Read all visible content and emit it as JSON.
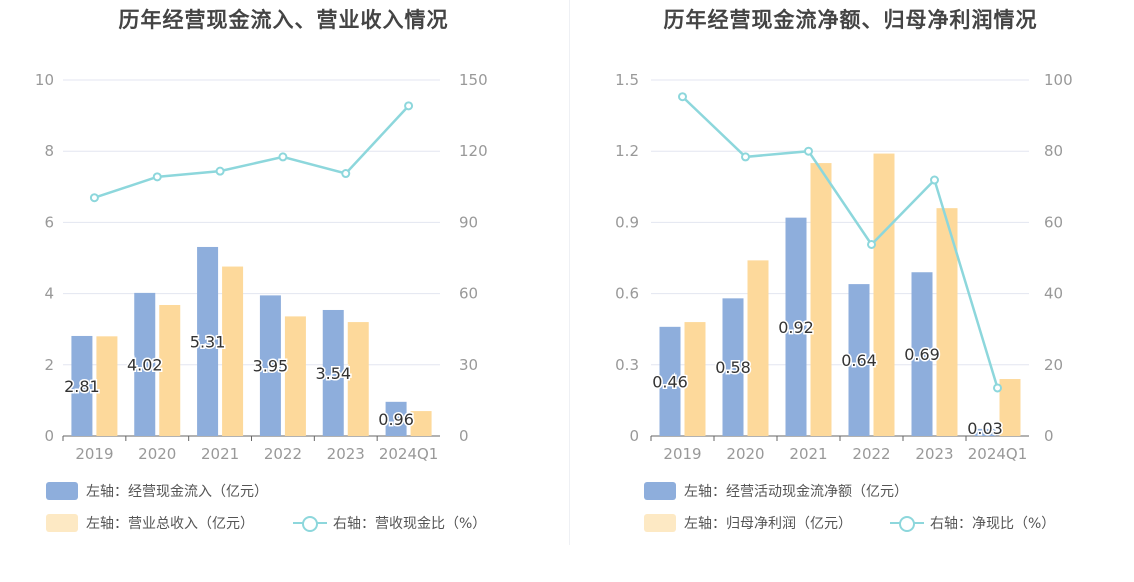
{
  "charts": [
    {
      "title": "历年经营现金流入、营业收入情况",
      "legend": {
        "bar1": "左轴：经营现金流入（亿元）",
        "bar2": "左轴：营业总收入（亿元）",
        "line": "右轴：营收现金比（%）"
      }
    },
    {
      "title": "历年经营现金流净额、归母净利润情况",
      "legend": {
        "bar1": "左轴：经营活动现金流净额（亿元）",
        "bar2": "左轴：归母净利润（亿元）",
        "line": "右轴：净现比（%）"
      }
    }
  ],
  "chart_data": [
    {
      "type": "bar",
      "title": "历年经营现金流入、营业收入情况",
      "categories": [
        "2019",
        "2020",
        "2021",
        "2022",
        "2023",
        "2024Q1"
      ],
      "series": [
        {
          "name": "左轴：经营现金流入（亿元）",
          "axis": "left",
          "type": "bar",
          "values": [
            2.81,
            4.02,
            5.31,
            3.95,
            3.54,
            0.96
          ],
          "labels": [
            "2.81",
            "4.02",
            "5.31",
            "3.95",
            "3.54",
            "0.96"
          ]
        },
        {
          "name": "左轴：营业总收入（亿元）",
          "axis": "left",
          "type": "bar",
          "values": [
            2.8,
            3.68,
            4.76,
            3.36,
            3.2,
            0.7
          ]
        },
        {
          "name": "右轴：营收现金比（%）",
          "axis": "right",
          "type": "line",
          "values": [
            100.4,
            109.2,
            111.6,
            117.6,
            110.6,
            139.1
          ]
        }
      ],
      "left_axis": {
        "min": 0,
        "max": 10,
        "ticks": [
          "0",
          "2",
          "4",
          "6",
          "8",
          "10"
        ]
      },
      "right_axis": {
        "min": 0,
        "max": 150,
        "ticks": [
          "0",
          "30",
          "60",
          "90",
          "120",
          "150"
        ]
      },
      "colors": {
        "bar1": "#8eaedc",
        "bar2": "#fdd99b",
        "line": "#8dd7dc",
        "grid": "#e3e6f0",
        "axis": "#999999",
        "label": "#333333"
      }
    },
    {
      "type": "bar",
      "title": "历年经营现金流净额、归母净利润情况",
      "categories": [
        "2019",
        "2020",
        "2021",
        "2022",
        "2023",
        "2024Q1"
      ],
      "series": [
        {
          "name": "左轴：经营活动现金流净额（亿元）",
          "axis": "left",
          "type": "bar",
          "values": [
            0.46,
            0.58,
            0.92,
            0.64,
            0.69,
            0.03
          ],
          "labels": [
            "0.46",
            "0.58",
            "0.92",
            "0.64",
            "0.69",
            "0.03"
          ]
        },
        {
          "name": "左轴：归母净利润（亿元）",
          "axis": "left",
          "type": "bar",
          "values": [
            0.48,
            0.74,
            1.15,
            1.19,
            0.96,
            0.24
          ]
        },
        {
          "name": "右轴：净现比（%）",
          "axis": "right",
          "type": "line",
          "values": [
            95.3,
            78.4,
            80.0,
            53.8,
            71.9,
            13.5
          ]
        }
      ],
      "left_axis": {
        "min": 0,
        "max": 1.5,
        "ticks": [
          "0",
          "0.3",
          "0.6",
          "0.9",
          "1.2",
          "1.5"
        ]
      },
      "right_axis": {
        "min": 0,
        "max": 100,
        "ticks": [
          "0",
          "20",
          "40",
          "60",
          "80",
          "100"
        ]
      },
      "colors": {
        "bar1": "#8eaedc",
        "bar2": "#fdd99b",
        "line": "#8dd7dc",
        "grid": "#e3e6f0",
        "axis": "#999999",
        "label": "#333333"
      }
    }
  ]
}
